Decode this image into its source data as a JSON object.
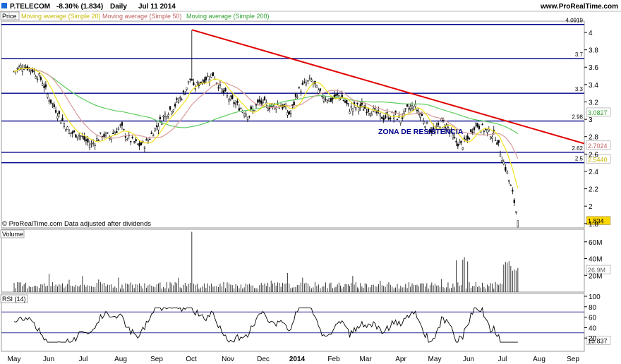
{
  "header": {
    "symbol": "P.TELECOM",
    "change": "-8.30% (1.834)",
    "period": "Daily",
    "date": "Jul 11 2014",
    "site": "www.ProRealTime.com"
  },
  "legend": {
    "price": "Price",
    "ma20": "Moving average (Simple 20)",
    "ma50": "Moving average (Simple 50)",
    "ma200": "Moving average (Simple 200)"
  },
  "footer_note": "© ProRealTime.com  Data adjusted after dividends",
  "annotation": "ZONA DE RESISTÊNCIA",
  "colors": {
    "ma20": "#f2e21a",
    "ma50": "#d99a9a",
    "ma200": "#5ccc5c",
    "trendline": "#e00000",
    "levels": "#00008b",
    "rsi_band": "#333399",
    "last_price_box": "#ffd700"
  },
  "chart_data": [
    {
      "type": "candlestick",
      "name_panel": "price",
      "x_labels": [
        "May",
        "Jun",
        "Jul",
        "Aug",
        "Sep",
        "Oct",
        "Nov",
        "Dec",
        "2014",
        "Feb",
        "Mar",
        "Apr",
        "May",
        "Jun",
        "Jul",
        "Aug",
        "Sep"
      ],
      "y_ticks": [
        "4",
        "3.8",
        "3.6",
        "3.4",
        "3.2",
        "3",
        "2.8",
        "2.6",
        "2.4",
        "2.2",
        "2",
        "1.8"
      ],
      "ylim": [
        1.75,
        4.13
      ],
      "horizontal_levels": [
        {
          "value": 4.0919,
          "label": "4.0919"
        },
        {
          "value": 3.7,
          "label": "3.7"
        },
        {
          "value": 3.3,
          "label": "3.3"
        },
        {
          "value": 2.98,
          "label": "2.98"
        },
        {
          "value": 2.62,
          "label": "2.62"
        },
        {
          "value": 2.5,
          "label": "2.5"
        }
      ],
      "trendline": {
        "from": {
          "x": "Oct 2013",
          "y": 4.03
        },
        "to": {
          "x": "Sep 2014",
          "y": 2.72
        }
      },
      "value_labels": {
        "ma200": "3.0827",
        "ma50": "2.7024",
        "ma20": "2.5440",
        "last": "1.834"
      },
      "close_series_approx": [
        {
          "x": "May 2013",
          "y": 3.57
        },
        {
          "x": "Jun 2013",
          "y": 3.22
        },
        {
          "x": "Jun 2013",
          "y": 2.9
        },
        {
          "x": "Jul 2013",
          "y": 2.78
        },
        {
          "x": "Jul 2013",
          "y": 2.7
        },
        {
          "x": "Aug 2013",
          "y": 2.9
        },
        {
          "x": "Aug 2013",
          "y": 2.7
        },
        {
          "x": "Sep 2013",
          "y": 2.95
        },
        {
          "x": "Sep 2013",
          "y": 3.25
        },
        {
          "x": "Oct 2013",
          "y": 3.35
        },
        {
          "x": "Oct 2013",
          "y": 3.55
        },
        {
          "x": "Nov 2013",
          "y": 3.2
        },
        {
          "x": "Nov 2013",
          "y": 3.05
        },
        {
          "x": "Dec 2013",
          "y": 3.2
        },
        {
          "x": "Dec 2013",
          "y": 3.15
        },
        {
          "x": "Jan 2014",
          "y": 3.45
        },
        {
          "x": "Feb 2014",
          "y": 3.25
        },
        {
          "x": "Feb 2014",
          "y": 3.2
        },
        {
          "x": "Mar 2014",
          "y": 3.1
        },
        {
          "x": "Apr 2014",
          "y": 3.0
        },
        {
          "x": "Apr 2014",
          "y": 3.15
        },
        {
          "x": "May 2014",
          "y": 2.8
        },
        {
          "x": "May 2014",
          "y": 2.95
        },
        {
          "x": "Jun 2014",
          "y": 2.72
        },
        {
          "x": "Jun 2014",
          "y": 2.98
        },
        {
          "x": "Jul 2014",
          "y": 2.45
        },
        {
          "x": "Jul 2014",
          "y": 1.834
        }
      ]
    },
    {
      "type": "bar",
      "name_panel": "volume",
      "title": "Volume",
      "y_ticks": [
        "60M",
        "40M",
        "20M"
      ],
      "ylim": [
        0,
        75
      ],
      "value_label": "26.9M"
    },
    {
      "type": "line",
      "name_panel": "rsi",
      "title": "RSI (14)",
      "y_ticks": [
        "100",
        "80",
        "60",
        "40",
        "20"
      ],
      "ylim": [
        0,
        100
      ],
      "bands": [
        70,
        30
      ],
      "value_label": "15.837"
    }
  ]
}
